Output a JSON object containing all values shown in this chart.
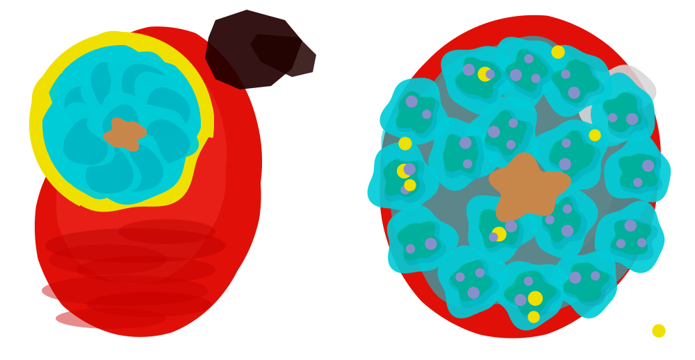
{
  "background_color": "#ffffff",
  "fig_width": 10.0,
  "fig_height": 5.19,
  "left_panel": {
    "rbc_color": "#e01008",
    "rbc_light": "#f04030",
    "membrane_color": "#f0e000",
    "parasite_color": "#00ccd8",
    "parasite_dark": "#009aaa",
    "hemozoin_color": "#c8874a",
    "dark_region": "#220000"
  },
  "right_panel": {
    "rbc_color": "#e01008",
    "rbc_light": "#f04030",
    "parasite_color": "#00ccd8",
    "parasite_inner": "#00b890",
    "parasite_dark": "#009aaa",
    "yellow_color": "#f0e000",
    "blue_color": "#8890cc",
    "hemozoin_color": "#c8874a",
    "white_color": "#d8d8d8"
  }
}
